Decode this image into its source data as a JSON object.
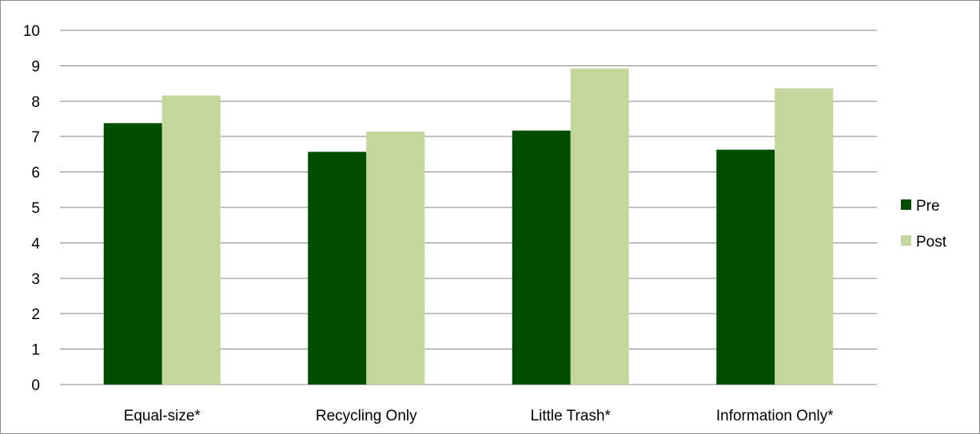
{
  "chart_data": {
    "type": "bar",
    "categories": [
      "Equal-size*",
      "Recycling Only",
      "Little Trash*",
      "Information Only*"
    ],
    "series": [
      {
        "name": "Pre",
        "color": "#004d00",
        "values": [
          7.38,
          6.57,
          7.17,
          6.63
        ]
      },
      {
        "name": "Post",
        "color": "#c3d69b",
        "values": [
          8.16,
          7.14,
          8.92,
          8.36
        ]
      }
    ],
    "yticks": [
      "0",
      "1",
      "2",
      "3",
      "4",
      "5",
      "6",
      "7",
      "8",
      "9",
      "10"
    ],
    "ylim": [
      0,
      10
    ],
    "grid": true,
    "gridline_color": "#868686",
    "legend_position": "right",
    "title": "",
    "xlabel": "",
    "ylabel": ""
  }
}
